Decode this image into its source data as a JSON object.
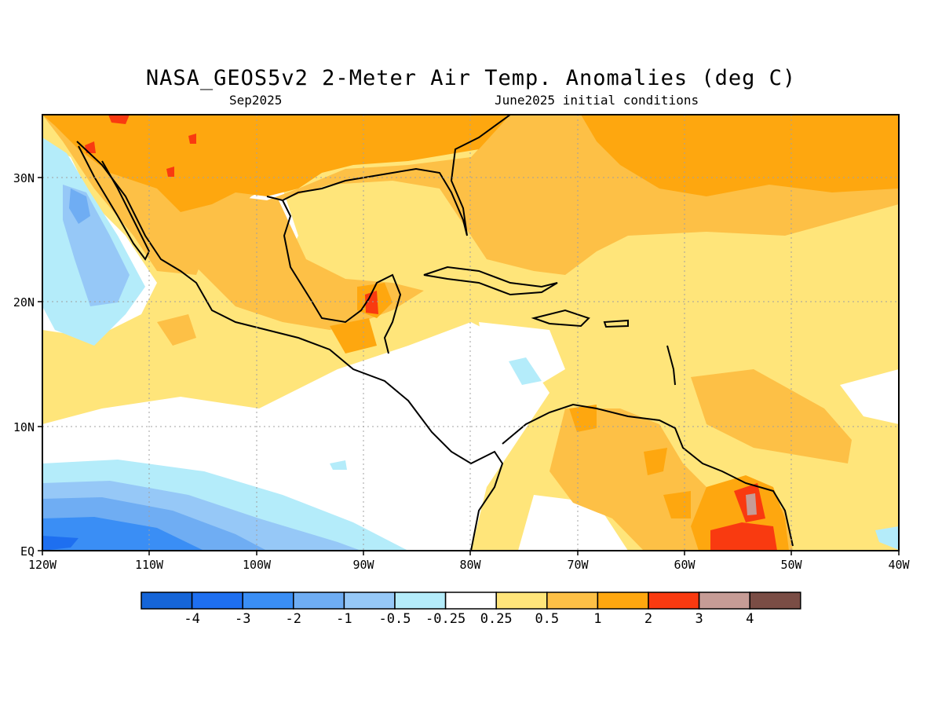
{
  "title": "NASA_GEOS5v2 2-Meter Air Temp. Anomalies (deg C)",
  "subtitle_left": "Sep2025",
  "subtitle_right": "June2025 initial conditions",
  "lat_ticks": [
    "30N",
    "20N",
    "10N",
    "EQ"
  ],
  "lon_ticks": [
    "120W",
    "110W",
    "100W",
    "90W",
    "80W",
    "70W",
    "60W",
    "50W",
    "40W"
  ],
  "colorbar": {
    "labels": [
      "-4",
      "-3",
      "-2",
      "-1",
      "-0.5",
      "-0.25",
      "0.25",
      "0.5",
      "1",
      "2",
      "3",
      "4"
    ],
    "colors": [
      "#1565d8",
      "#1e6ff0",
      "#3a8ef5",
      "#6fadf3",
      "#96c8f7",
      "#b4ecfa",
      "#ffffff",
      "#ffe57a",
      "#fdc046",
      "#fea70f",
      "#f93a10",
      "#c69c96",
      "#7a4d45"
    ]
  },
  "colors": {
    "coast": "#000000",
    "grid": "#a0a0a0"
  }
}
